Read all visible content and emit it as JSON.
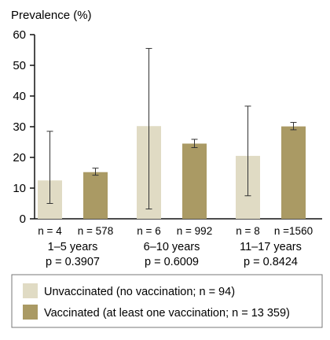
{
  "chart_data": {
    "type": "bar",
    "ylabel": "Prevalence (%)",
    "ylim": [
      0,
      60
    ],
    "yticks": [
      0,
      10,
      20,
      30,
      40,
      50,
      60
    ],
    "grid": false,
    "colors": {
      "unvaccinated": "#e0dbc4",
      "vaccinated": "#aa9a64",
      "axis": "#111111"
    },
    "groups": [
      {
        "name": "1–5 years",
        "p_value": "p = 0.3907",
        "bars": [
          {
            "series": "unvaccinated",
            "n_label": "n = 4",
            "value": 12.5,
            "ci_low": 5,
            "ci_high": 28.5
          },
          {
            "series": "vaccinated",
            "n_label": "n = 578",
            "value": 15.2,
            "ci_low": 14.2,
            "ci_high": 16.5
          }
        ]
      },
      {
        "name": "6–10 years",
        "p_value": "p = 0.6009",
        "bars": [
          {
            "series": "unvaccinated",
            "n_label": "n = 6",
            "value": 30.2,
            "ci_low": 3.2,
            "ci_high": 55.5
          },
          {
            "series": "vaccinated",
            "n_label": "n = 992",
            "value": 24.5,
            "ci_low": 23.2,
            "ci_high": 25.9
          }
        ]
      },
      {
        "name": "11–17 years",
        "p_value": "p = 0.8424",
        "bars": [
          {
            "series": "unvaccinated",
            "n_label": "n = 8",
            "value": 20.5,
            "ci_low": 7.5,
            "ci_high": 36.7
          },
          {
            "series": "vaccinated",
            "n_label": "n =1560",
            "value": 30.1,
            "ci_low": 29.0,
            "ci_high": 31.4
          }
        ]
      }
    ],
    "legend": [
      {
        "series": "unvaccinated",
        "label": "Unvaccinated (no vaccination; n = 94)"
      },
      {
        "series": "vaccinated",
        "label": "Vaccinated (at least one vaccination; n = 13 359)"
      }
    ]
  }
}
